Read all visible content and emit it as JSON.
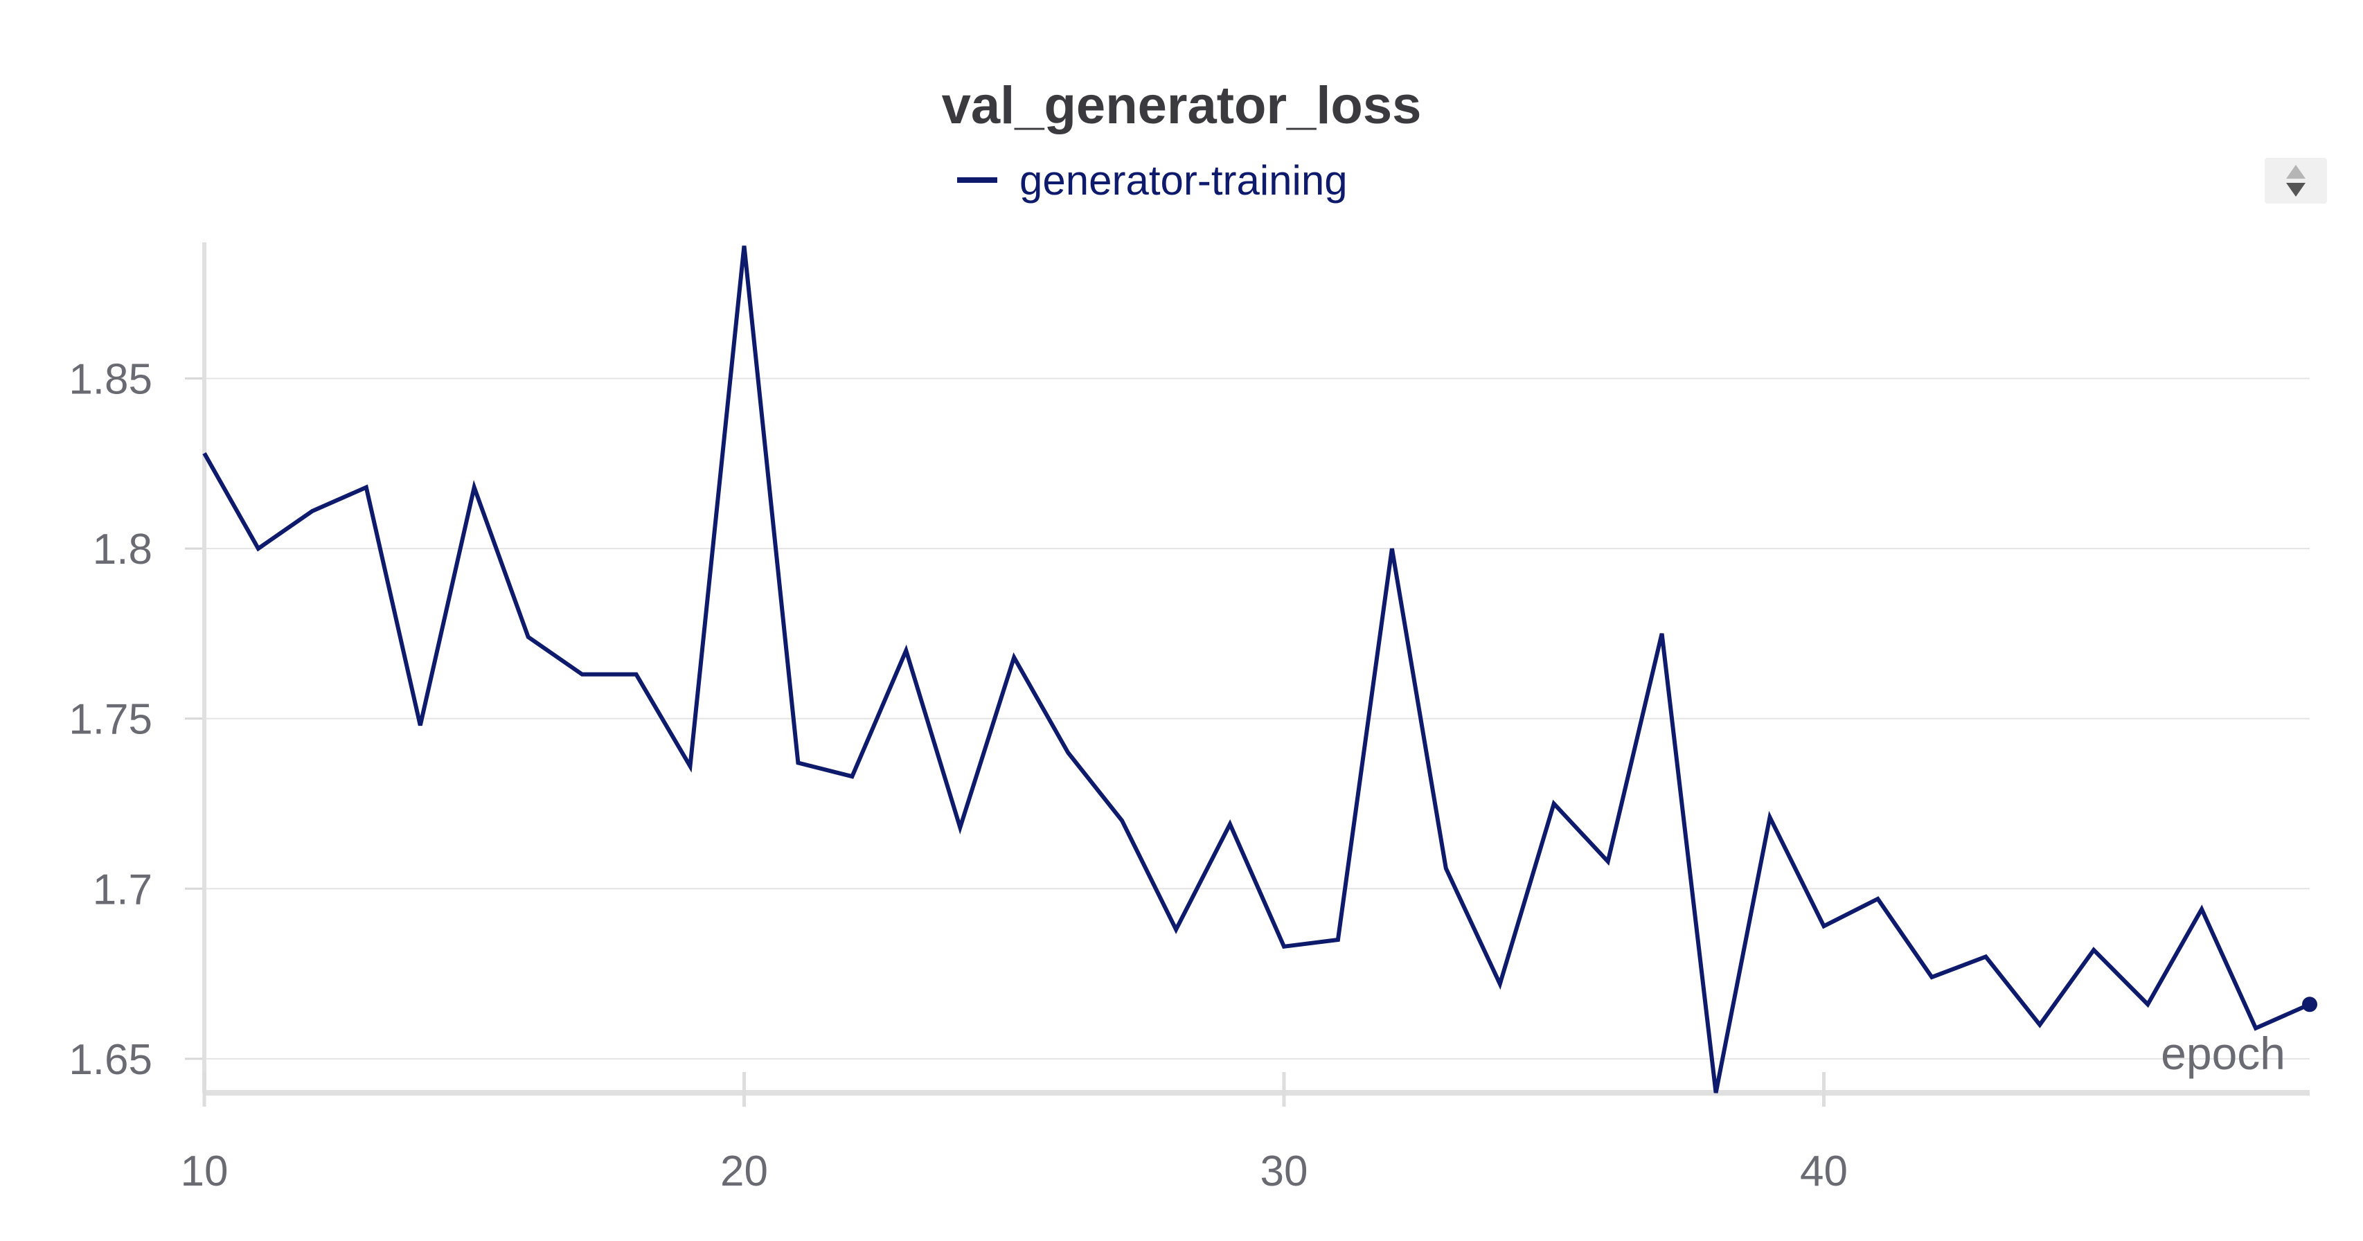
{
  "chart_data": {
    "type": "line",
    "title": "val_generator_loss",
    "xlabel": "epoch",
    "ylabel": "",
    "xlim": [
      10,
      49
    ],
    "ylim": [
      1.64,
      1.89
    ],
    "x_ticks": [
      10,
      20,
      30,
      40
    ],
    "y_ticks": [
      1.65,
      1.7,
      1.75,
      1.8,
      1.85
    ],
    "y_tick_labels": [
      "1.65",
      "1.7",
      "1.75",
      "1.8",
      "1.85"
    ],
    "grid": true,
    "legend_position": "top-center",
    "series": [
      {
        "name": "generator-training",
        "color": "#0e1a6b",
        "x": [
          10,
          11,
          12,
          13,
          14,
          15,
          16,
          17,
          18,
          19,
          20,
          21,
          22,
          23,
          24,
          25,
          26,
          27,
          28,
          29,
          30,
          31,
          32,
          33,
          34,
          35,
          36,
          37,
          38,
          39,
          40,
          41,
          42,
          43,
          44,
          45,
          46,
          47,
          48,
          49
        ],
        "values": [
          1.828,
          1.8,
          1.811,
          1.818,
          1.748,
          1.818,
          1.774,
          1.763,
          1.763,
          1.736,
          1.889,
          1.737,
          1.733,
          1.77,
          1.718,
          1.768,
          1.74,
          1.72,
          1.688,
          1.719,
          1.683,
          1.685,
          1.8,
          1.706,
          1.672,
          1.725,
          1.708,
          1.775,
          1.64,
          1.721,
          1.689,
          1.697,
          1.674,
          1.68,
          1.66,
          1.682,
          1.666,
          1.694,
          1.659,
          1.666
        ]
      }
    ]
  }
}
